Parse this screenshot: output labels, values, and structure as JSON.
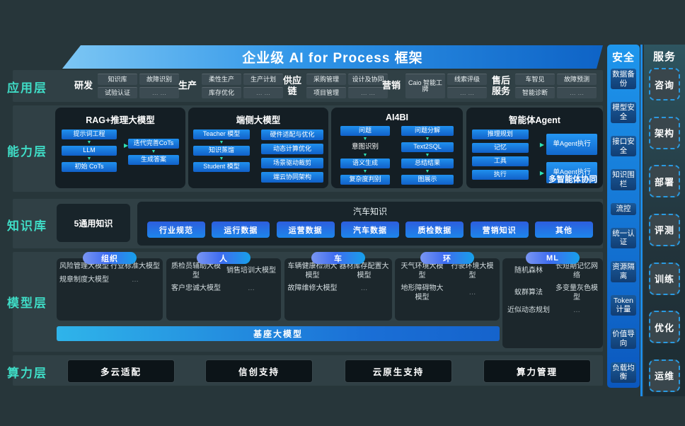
{
  "colors": {
    "accent": "#3FDCC6",
    "primary": "#1C80E4",
    "banner_from": "#7CC6F4",
    "banner_to": "#0E63C6"
  },
  "icons": {
    "arrow_down": "▼",
    "arrow_right": "▶"
  },
  "banner": {
    "title": "企业级 AI for Process 框架"
  },
  "layers": {
    "application": {
      "label": "应用层",
      "groups": [
        {
          "label": "研发",
          "items": [
            "知识库",
            "故障识别",
            "试验认证",
            {
              "label": "… …",
              "dim": true
            }
          ]
        },
        {
          "label": "生产",
          "items": [
            "柔性生产",
            "生产计划",
            "库存优化",
            {
              "label": "… …",
              "dim": true
            }
          ]
        },
        {
          "label": "供应链",
          "items": [
            "采购管理",
            "设计及协同",
            "项目管理",
            {
              "label": "… …",
              "dim": true
            }
          ]
        },
        {
          "label": "营销",
          "items": [
            {
              "label": "Caio 智能工牌",
              "tall": true
            },
            "线索评级",
            {
              "label": "… …",
              "dim": true
            }
          ]
        },
        {
          "label": "售后服务",
          "items": [
            "车智见",
            "故障预测",
            "智能诊断",
            {
              "label": "… …",
              "dim": true
            }
          ]
        }
      ]
    },
    "capability": {
      "label": "能力层",
      "rag": {
        "title": "RAG+推理大模型",
        "left": [
          "提示词工程",
          "LLM",
          "初始 CoTs"
        ],
        "right": [
          "迭代完善CoTs",
          "生成答案"
        ]
      },
      "edge": {
        "title": "端侧大模型",
        "left": [
          "Teacher 模型",
          "知识蒸馏",
          "Student 模型"
        ],
        "right": [
          "硬件适配与优化",
          "动态计算优化",
          "场景驱动裁剪",
          "端云协同架构"
        ]
      },
      "ai4bi": {
        "title": "AI4BI",
        "left": [
          "问题",
          {
            "label": "意图识别",
            "plain": true
          },
          "语义生成",
          "复杂度判别"
        ],
        "right": [
          "问题分解",
          "Text2SQL",
          "总结结果",
          "图展示"
        ]
      },
      "agent": {
        "title": "智能体Agent",
        "left": [
          "推理规划",
          "记忆",
          "工具",
          "执行"
        ],
        "right": [
          "单Agent执行",
          "单Agent执行"
        ],
        "caption": "多智能体协同"
      }
    },
    "knowledge": {
      "label": "知识库",
      "general": "5通用知识",
      "title": "汽车知识",
      "chips": [
        "行业规范",
        "运行数据",
        "运营数据",
        "汽车数据",
        "质检数据",
        "营销知识",
        "其他"
      ]
    },
    "model": {
      "label": "模型层",
      "base": "基座大模型",
      "groups": [
        {
          "pill": "组织",
          "items": [
            "风险管理大模型",
            "行业标准大模型",
            "规章制度大模型",
            {
              "label": "…",
              "dim": true
            }
          ]
        },
        {
          "pill": "人",
          "items": [
            "质检员辅助大模型",
            "销售培训大模型",
            "客户忠诚大模型",
            {
              "label": "…",
              "dim": true
            }
          ]
        },
        {
          "pill": "车",
          "items": [
            "车辆健康检测大模型",
            "器材库存配置大模型",
            "故障维修大模型",
            {
              "label": "…",
              "dim": true
            }
          ]
        },
        {
          "pill": "环",
          "items": [
            "天气环境大模型",
            "行驶环境大模型",
            "地形障碍物大模型",
            {
              "label": "…",
              "dim": true
            }
          ]
        },
        {
          "pill": "ML",
          "items": [
            "随机森林",
            "长短期记忆网络",
            "蚁群算法",
            "多变量灰色模型",
            "近似动态规划",
            {
              "label": "…",
              "dim": true
            }
          ]
        }
      ]
    },
    "compute": {
      "label": "算力层",
      "items": [
        "多云适配",
        "信创支持",
        "云原生支持",
        "算力管理"
      ]
    }
  },
  "security_column": {
    "title": "安全",
    "items": [
      "数据备份",
      "模型安全",
      "接口安全",
      "知识围栏",
      "流控",
      "统一认证",
      "资源隔离",
      "Token计量",
      "价值导向",
      "负载均衡"
    ]
  },
  "service_column": {
    "title": "服务",
    "items": [
      "咨询",
      "架构",
      "部署",
      "评测",
      "训练",
      "优化",
      "运维"
    ]
  }
}
